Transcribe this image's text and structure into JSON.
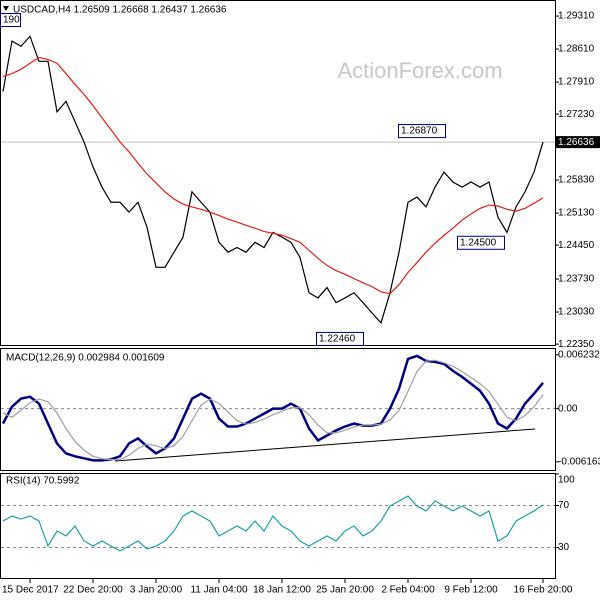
{
  "chart_data": [
    {
      "type": "line",
      "title": "USDCAD,H4 1.26509 1.26668 1.26437 1.26636",
      "watermark": "ActionForex.com",
      "categories": [
        null,
        null,
        null,
        "15 Dec 2017",
        null,
        null,
        null,
        null,
        null,
        null,
        "22 Dec 20:00",
        null,
        null,
        null,
        null,
        null,
        null,
        "3 Jan 20:00",
        null,
        null,
        null,
        null,
        null,
        null,
        "11 Jan 04:00",
        null,
        null,
        null,
        null,
        null,
        null,
        "18 Jan 12:00",
        null,
        null,
        null,
        null,
        null,
        null,
        "25 Jan 20:00",
        null,
        null,
        null,
        null,
        null,
        null,
        "2 Feb 04:00",
        null,
        null,
        null,
        null,
        null,
        null,
        "9 Feb 12:00",
        null,
        null,
        null,
        null,
        null,
        null,
        null,
        "16 Feb 20:00"
      ],
      "series": [
        {
          "color": "#000000",
          "values": [
            1.2771,
            1.2878,
            1.2867,
            1.2888,
            1.2835,
            1.2835,
            1.2728,
            1.275,
            1.2707,
            1.2664,
            1.2611,
            1.2568,
            1.2536,
            1.2536,
            1.2515,
            1.2536,
            1.2483,
            1.2398,
            1.2398,
            1.243,
            1.2462,
            1.2558,
            1.2536,
            1.2515,
            1.2451,
            1.243,
            1.244,
            1.243,
            1.2451,
            1.244,
            1.2472,
            1.2462,
            1.2451,
            1.2419,
            1.2344,
            1.2333,
            1.2355,
            1.2323,
            1.2333,
            1.2344,
            1.2323,
            1.2301,
            1.228,
            1.2344,
            1.243,
            1.2536,
            1.2547,
            1.2526,
            1.2568,
            1.26,
            1.2579,
            1.2568,
            1.2579,
            1.2568,
            1.2579,
            1.2504,
            1.2472,
            1.2526,
            1.2558,
            1.26,
            1.26636
          ]
        },
        {
          "color": "#e0201b",
          "values": [
            1.2803,
            1.2809,
            1.2818,
            1.2831,
            1.2843,
            1.2839,
            1.2831,
            1.2809,
            1.2786,
            1.2765,
            1.2741,
            1.2715,
            1.269,
            1.2664,
            1.2643,
            1.2619,
            1.2596,
            1.2577,
            1.2558,
            1.2543,
            1.2532,
            1.2526,
            1.2521,
            1.2515,
            1.2508,
            1.25,
            1.2494,
            1.2487,
            1.2481,
            1.2474,
            1.247,
            1.2466,
            1.2459,
            1.2451,
            1.2434,
            1.2417,
            1.2402,
            1.2391,
            1.2383,
            1.2374,
            1.2365,
            1.2357,
            1.2346,
            1.2342,
            1.2361,
            1.2387,
            1.2408,
            1.243,
            1.2449,
            1.2466,
            1.2481,
            1.2498,
            1.2511,
            1.2523,
            1.253,
            1.2528,
            1.2521,
            1.2517,
            1.2523,
            1.2534,
            1.2545
          ]
        }
      ],
      "ylim": [
        1.2231,
        1.2963
      ],
      "yticks": [
        {
          "value": 1.2931,
          "label": "1.29310"
        },
        {
          "value": 1.2861,
          "label": "1.28610"
        },
        {
          "value": 1.2791,
          "label": "1.27910"
        },
        {
          "value": 1.2723,
          "label": "1.27230"
        },
        {
          "value": 1.2583,
          "label": "1.25830"
        },
        {
          "value": 1.2513,
          "label": "1.25130"
        },
        {
          "value": 1.2445,
          "label": "1.24450"
        },
        {
          "value": 1.2373,
          "label": "1.23730"
        },
        {
          "value": 1.2303,
          "label": "1.23030"
        },
        {
          "value": 1.2235,
          "label": "1.22350"
        }
      ],
      "last_price": {
        "value": 1.26636,
        "label": "1.26636"
      },
      "annotations": [
        {
          "value": 1.2687,
          "label": "1.26870"
        },
        {
          "value": 1.245,
          "label": "1.24500"
        },
        {
          "value": 1.2246,
          "label": "1.22460"
        },
        {
          "label": "190"
        }
      ]
    },
    {
      "type": "line",
      "title": "MACD(12,26,9) 0.002984 0.001609",
      "series": [
        {
          "color": "#000080",
          "values": [
            -0.00173,
            0.00023,
            0.00115,
            0.00138,
            0.00058,
            -0.00173,
            -0.00403,
            -0.00518,
            -0.00552,
            -0.00575,
            -0.00598,
            -0.00598,
            -0.00587,
            -0.00552,
            -0.00403,
            -0.00345,
            -0.00437,
            -0.00518,
            -0.0046,
            -0.00345,
            -0.00115,
            0.00115,
            0.00173,
            0.00115,
            -0.00115,
            -0.00207,
            -0.00207,
            -0.00173,
            -0.00115,
            -0.00058,
            0,
            0,
            0.00058,
            0,
            -0.0023,
            -0.00368,
            -0.00311,
            -0.00253,
            -0.00207,
            -0.00173,
            -0.00196,
            -0.00196,
            -0.00173,
            0,
            0.0023,
            0.00575,
            0.0061,
            0.00552,
            0.00541,
            0.00518,
            0.00437,
            0.00368,
            0.00288,
            0.00207,
            0.00058,
            -0.00173,
            -0.0023,
            -0.00115,
            0.00058,
            0.00173,
            0.002984
          ]
        },
        {
          "color": "#a0a0a0",
          "values": [
            -0.0005,
            -0.001,
            -0.0002,
            0.0007,
            0.0011,
            0.0008,
            -0.0005,
            -0.0023,
            -0.0038,
            -0.0048,
            -0.0055,
            -0.0058,
            -0.0059,
            -0.0059,
            -0.0054,
            -0.0046,
            -0.0041,
            -0.0043,
            -0.0046,
            -0.0043,
            -0.0032,
            -0.0014,
            0.0004,
            0.0011,
            0.0006,
            -0.0004,
            -0.0014,
            -0.0018,
            -0.0016,
            -0.0012,
            -0.0007,
            -0.0003,
            0.0001,
            0.0001,
            -0.0007,
            -0.0019,
            -0.0028,
            -0.0028,
            -0.0025,
            -0.0021,
            -0.0019,
            -0.0019,
            -0.0018,
            -0.0013,
            -0.0002,
            0.002,
            0.0043,
            0.0055,
            0.0056,
            0.0053,
            0.0049,
            0.0043,
            0.0036,
            0.0029,
            0.002,
            0.0005,
            -0.001,
            -0.0014,
            -0.0008,
            0.0002,
            0.001609
          ]
        }
      ],
      "ylim": [
        -0.0071,
        0.0069
      ],
      "yticks": [
        0.006232,
        {
          "value": 0,
          "label": "0.00"
        },
        -0.006163
      ]
    },
    {
      "type": "line",
      "title": "RSI(14) 70.5992",
      "series": [
        {
          "color": "#1fa0a0",
          "values": [
            55.2,
            60,
            57.1,
            60,
            55.2,
            31.4,
            45.7,
            41,
            50.5,
            36.2,
            31.4,
            36.2,
            31.4,
            26.7,
            31.4,
            36.2,
            28.6,
            31.4,
            36.2,
            45.7,
            60,
            64.8,
            60,
            55.2,
            41,
            45.7,
            50.5,
            45.7,
            55.2,
            45.7,
            60,
            50.5,
            45.7,
            36.2,
            31.4,
            36.2,
            41,
            36.2,
            45.7,
            50.5,
            41,
            45.7,
            55.2,
            69.5,
            74.3,
            79,
            69.5,
            64.8,
            74.3,
            69.5,
            64.8,
            69.5,
            64.8,
            60,
            64.8,
            36.2,
            41,
            55.2,
            60,
            64.8,
            70.5992
          ]
        }
      ],
      "ylim": [
        0,
        100
      ],
      "yticks": [
        100,
        70,
        30
      ]
    }
  ]
}
